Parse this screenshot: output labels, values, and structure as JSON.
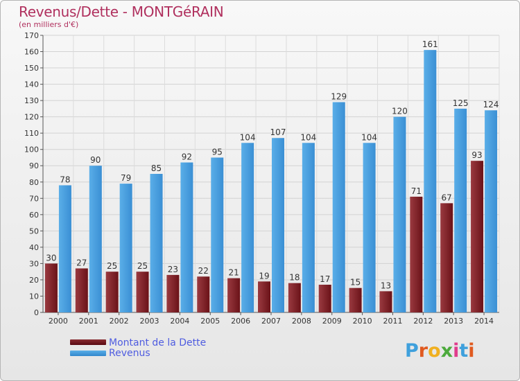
{
  "title": "Revenus/Dette - MONTGéRAIN",
  "subtitle": "(en milliers d'€)",
  "logo": [
    "P",
    "r",
    "o",
    "x",
    "i",
    "t",
    "i"
  ],
  "colors": {
    "title": "#b0305e",
    "debt_top": "#8a2c32",
    "debt_bottom": "#5a0a12",
    "revenue_light": "#5aaee8",
    "revenue_dark": "#3288cc",
    "legend_text": "#4e5ce0"
  },
  "chart_data": {
    "type": "bar",
    "categories": [
      "2000",
      "2001",
      "2002",
      "2003",
      "2004",
      "2005",
      "2006",
      "2007",
      "2008",
      "2009",
      "2010",
      "2011",
      "2012",
      "2013",
      "2014"
    ],
    "series": [
      {
        "name": "Montant de la Dette",
        "values": [
          30,
          27,
          25,
          25,
          23,
          22,
          21,
          19,
          18,
          17,
          15,
          13,
          71,
          67,
          93
        ]
      },
      {
        "name": "Revenus",
        "values": [
          78,
          90,
          79,
          85,
          92,
          95,
          104,
          107,
          104,
          129,
          104,
          120,
          161,
          125,
          124
        ]
      }
    ],
    "ylim": [
      0,
      170
    ],
    "ytick_step": 10,
    "grid": true,
    "legend": "bottom-left"
  }
}
